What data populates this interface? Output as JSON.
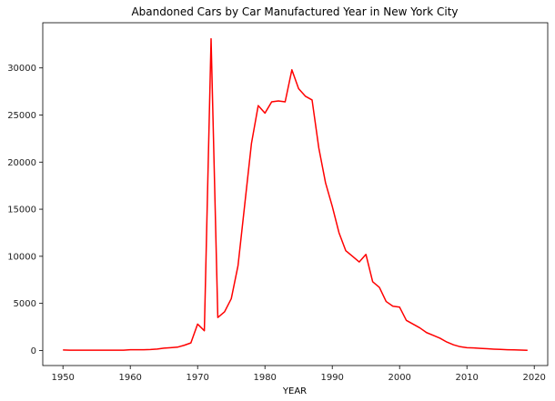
{
  "chart_data": {
    "type": "line",
    "title": "Abandoned Cars by Car Manufactured Year in New York City",
    "xlabel": "YEAR",
    "ylabel": "",
    "xlim": [
      1947,
      2022
    ],
    "ylim": [
      -1600,
      34800
    ],
    "xticks": [
      1950,
      1960,
      1970,
      1980,
      1990,
      2000,
      2010,
      2020
    ],
    "yticks": [
      0,
      5000,
      10000,
      15000,
      20000,
      25000,
      30000
    ],
    "grid": false,
    "legend": "none",
    "series_color": "#ff0000",
    "x": [
      1950,
      1951,
      1952,
      1953,
      1954,
      1955,
      1956,
      1957,
      1958,
      1959,
      1960,
      1961,
      1962,
      1963,
      1964,
      1965,
      1966,
      1967,
      1968,
      1969,
      1970,
      1971,
      1972,
      1973,
      1974,
      1975,
      1976,
      1977,
      1978,
      1979,
      1980,
      1981,
      1982,
      1983,
      1984,
      1985,
      1986,
      1987,
      1988,
      1989,
      1990,
      1991,
      1992,
      1993,
      1994,
      1995,
      1996,
      1997,
      1998,
      1999,
      2000,
      2001,
      2002,
      2003,
      2004,
      2005,
      2006,
      2007,
      2008,
      2009,
      2010,
      2011,
      2012,
      2013,
      2014,
      2015,
      2016,
      2017,
      2018,
      2019
    ],
    "y": [
      50,
      30,
      30,
      30,
      30,
      30,
      30,
      30,
      30,
      30,
      80,
      80,
      80,
      100,
      150,
      250,
      300,
      350,
      550,
      800,
      2800,
      2100,
      33100,
      3500,
      4100,
      5500,
      9000,
      15500,
      22000,
      26000,
      25200,
      26400,
      26500,
      26400,
      29800,
      27800,
      27000,
      26600,
      21500,
      17800,
      15300,
      12500,
      10600,
      10000,
      9400,
      10200,
      7300,
      6700,
      5200,
      4700,
      4600,
      3200,
      2800,
      2400,
      1900,
      1600,
      1300,
      900,
      600,
      400,
      300,
      270,
      220,
      180,
      140,
      110,
      80,
      60,
      40,
      20
    ]
  }
}
